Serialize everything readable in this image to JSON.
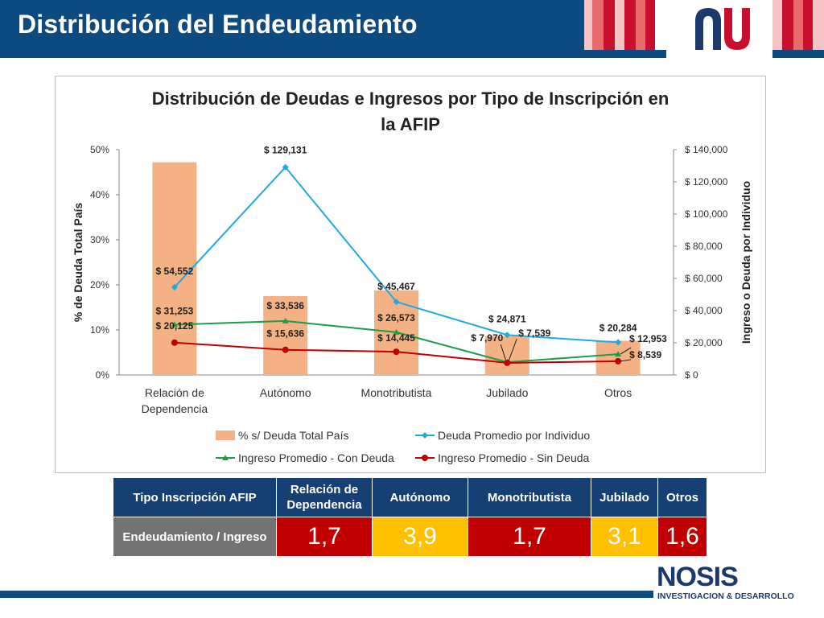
{
  "slide": {
    "title": "Distribución del Endeudamiento"
  },
  "logo_colors": {
    "navy": "#1a3a6e",
    "red": "#c8102e"
  },
  "chart_data": {
    "type": "bar+line",
    "title": "Distribución de Deudas e Ingresos por Tipo de Inscripción en la AFIP",
    "title_lines": [
      "Distribución de Deudas e Ingresos por Tipo de Inscripción en",
      "la AFIP"
    ],
    "categories": [
      "Relación de Dependencia",
      "Autónomo",
      "Monotributista",
      "Jubilado",
      "Otros"
    ],
    "category_lines": [
      [
        "Relación de",
        "Dependencia"
      ],
      [
        "Autónomo"
      ],
      [
        "Monotributista"
      ],
      [
        "Jubilado"
      ],
      [
        "Otros"
      ]
    ],
    "ylabel_left": "% de Deuda Total País",
    "ylabel_right": "Ingreso o Deuda por Individuo",
    "ylim_left": [
      0,
      50
    ],
    "ylim_right": [
      0,
      140000
    ],
    "left_ticks": [
      "0%",
      "10%",
      "20%",
      "30%",
      "40%",
      "50%"
    ],
    "right_ticks": [
      "$ 0",
      "$ 20,000",
      "$ 40,000",
      "$ 60,000",
      "$ 80,000",
      "$ 100,000",
      "$ 120,000",
      "$ 140,000"
    ],
    "bar_series": {
      "name": "% s/ Deuda Total País",
      "values": [
        47.2,
        17.5,
        18.8,
        8.6,
        7.6
      ],
      "color": "#f4b183"
    },
    "line_series": [
      {
        "name": "Deuda Promedio por Individuo",
        "color": "#1fa9e1",
        "values": [
          54552,
          129131,
          45467,
          24871,
          20284
        ],
        "labels": [
          "$ 54,552",
          "$ 129,131",
          "$ 45,467",
          "$ 24,871",
          "$ 20,284"
        ]
      },
      {
        "name": "Ingreso Promedio - Con Deuda",
        "color": "#1d9e48",
        "values": [
          31253,
          33536,
          26573,
          7970,
          12953
        ],
        "labels": [
          "$ 31,253",
          "$ 33,536",
          "$ 26,573",
          "$ 7,970",
          "$ 12,953"
        ]
      },
      {
        "name": "Ingreso Promedio - Sin Deuda",
        "color": "#c00000",
        "values": [
          20125,
          15636,
          14445,
          7539,
          8539
        ],
        "labels": [
          "$ 20,125",
          "$ 15,636",
          "$ 14,445",
          "$ 7,539",
          "$ 8,539"
        ]
      }
    ],
    "legend": [
      "% s/ Deuda Total País",
      "Deuda Promedio por Individuo",
      "Ingreso Promedio - Con Deuda",
      "Ingreso Promedio - Sin Deuda"
    ],
    "legend_position": "bottom"
  },
  "summary_table": {
    "header": [
      "Tipo Inscripción AFIP",
      "Relación de Dependencia",
      "Autónomo",
      "Monotributista",
      "Jubilado",
      "Otros"
    ],
    "row_label": "Endeudamiento / Ingreso",
    "values": [
      "1,7",
      "3,9",
      "1,7",
      "3,1",
      "1,6"
    ],
    "value_colors": [
      "#c00000",
      "#ffc000",
      "#c00000",
      "#ffc000",
      "#c00000"
    ]
  },
  "footer": {
    "brand": "NOSIS",
    "subtitle": "INVESTIGACION & DESARROLLO"
  }
}
